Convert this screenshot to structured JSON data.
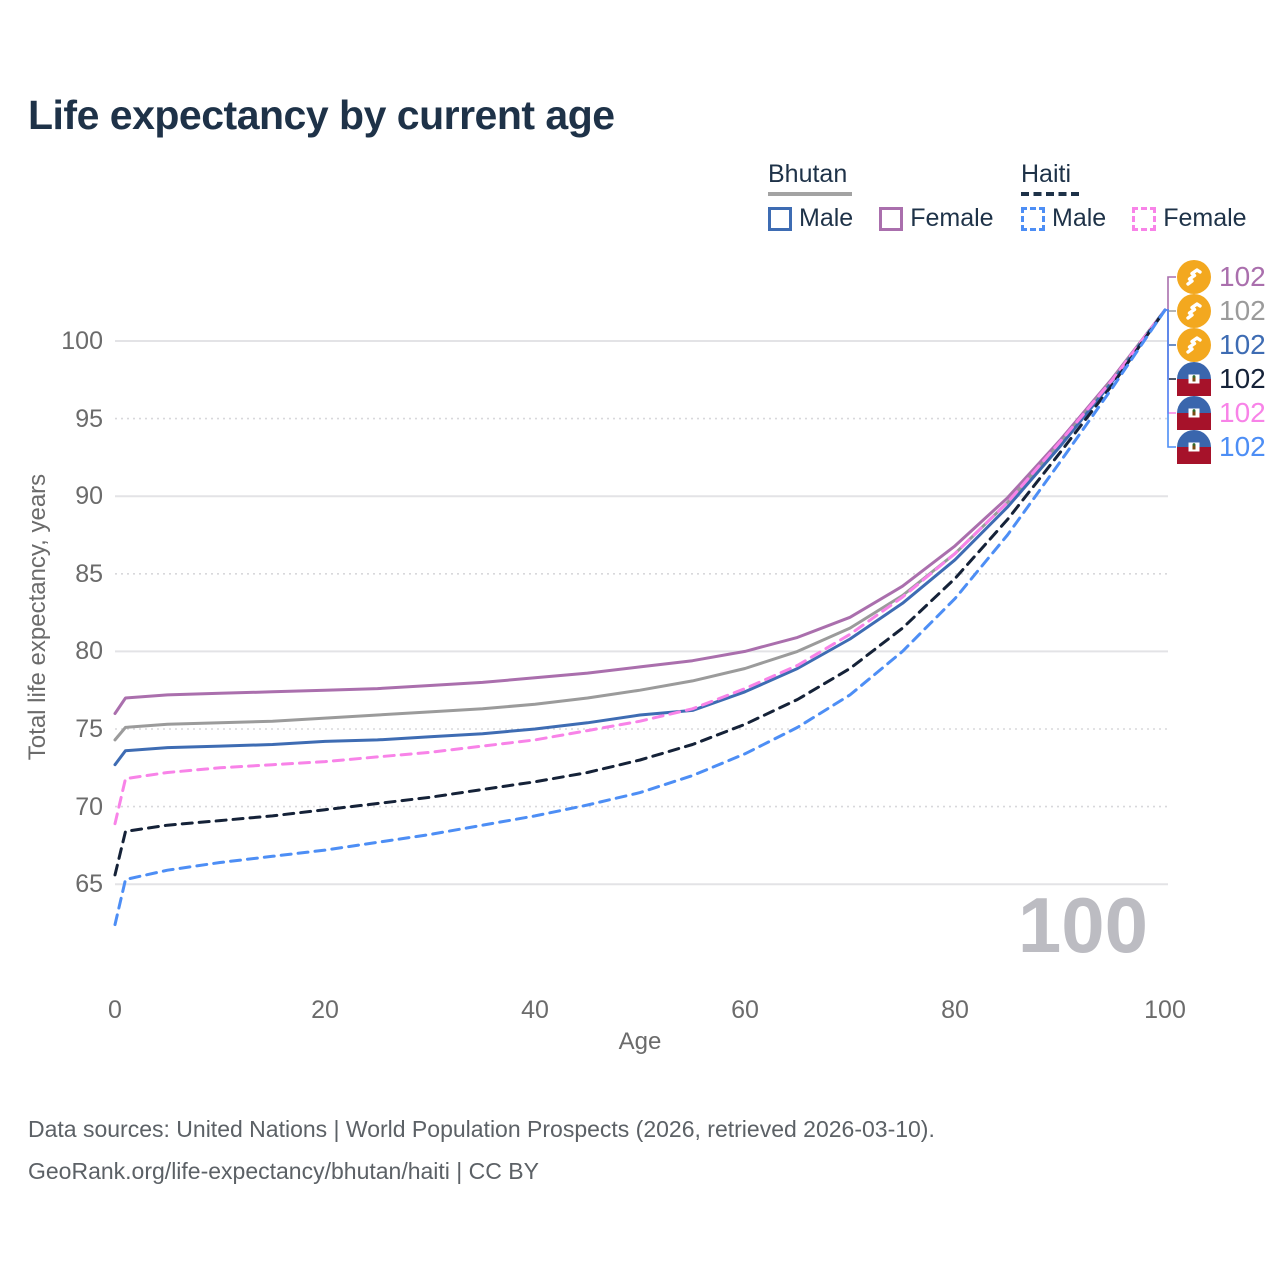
{
  "title": "Life expectancy by current age",
  "watermark": "100",
  "footer": {
    "line1": "Data sources: United Nations | World Population Prospects (2026, retrieved 2026-03-10).",
    "line2": "GeoRank.org/life-expectancy/bhutan/haiti | CC BY"
  },
  "legend": {
    "groups": [
      {
        "name": "Bhutan",
        "underline_style": "solid",
        "underline_color": "#a3a3a3",
        "items": [
          {
            "label": "Male",
            "color": "#3e6cb3",
            "dashed": false
          },
          {
            "label": "Female",
            "color": "#aa6fad",
            "dashed": false
          }
        ]
      },
      {
        "name": "Haiti",
        "underline_style": "dashed",
        "underline_color": "#1e3248",
        "items": [
          {
            "label": "Male",
            "color": "#4d8ef5",
            "dashed": true
          },
          {
            "label": "Female",
            "color": "#f883e8",
            "dashed": true
          }
        ]
      }
    ]
  },
  "end_labels": [
    {
      "flag": "bhutan",
      "value": "102",
      "color": "#aa6fad"
    },
    {
      "flag": "bhutan",
      "value": "102",
      "color": "#9b9b9b"
    },
    {
      "flag": "bhutan",
      "value": "102",
      "color": "#3e6cb3"
    },
    {
      "flag": "haiti",
      "value": "102",
      "color": "#152238"
    },
    {
      "flag": "haiti",
      "value": "102",
      "color": "#f883e8"
    },
    {
      "flag": "haiti",
      "value": "102",
      "color": "#4d8ef5"
    }
  ],
  "chart_data": {
    "type": "line",
    "title": "Life expectancy by current age",
    "xlabel": "Age",
    "ylabel": "Total life expectancy, years",
    "xlim": [
      0,
      100
    ],
    "ylim": [
      62,
      103
    ],
    "x_ticks": [
      0,
      20,
      40,
      60,
      80,
      100
    ],
    "y_ticks": [
      65,
      70,
      75,
      80,
      85,
      90,
      95,
      100
    ],
    "solid_gridlines": [
      100,
      90,
      80,
      65
    ],
    "legend_position": "top-right",
    "grid": true,
    "x": [
      0,
      1,
      5,
      10,
      15,
      20,
      25,
      30,
      35,
      40,
      45,
      50,
      55,
      60,
      65,
      70,
      75,
      80,
      85,
      90,
      95,
      100
    ],
    "series": [
      {
        "name": "Bhutan Female",
        "color": "#aa6fad",
        "dashed": false,
        "values": [
          76.0,
          77.0,
          77.2,
          77.3,
          77.4,
          77.5,
          77.6,
          77.8,
          78.0,
          78.3,
          78.6,
          79.0,
          79.4,
          80.0,
          80.9,
          82.2,
          84.2,
          86.8,
          89.9,
          93.6,
          97.6,
          102
        ]
      },
      {
        "name": "Bhutan Both sexes",
        "color": "#9b9b9b",
        "dashed": false,
        "values": [
          74.3,
          75.1,
          75.3,
          75.4,
          75.5,
          75.7,
          75.9,
          76.1,
          76.3,
          76.6,
          77.0,
          77.5,
          78.1,
          78.9,
          80.0,
          81.5,
          83.6,
          86.3,
          89.6,
          93.4,
          97.5,
          102
        ]
      },
      {
        "name": "Bhutan Male",
        "color": "#3e6cb3",
        "dashed": false,
        "values": [
          72.7,
          73.6,
          73.8,
          73.9,
          74.0,
          74.2,
          74.3,
          74.5,
          74.7,
          75.0,
          75.4,
          75.9,
          76.2,
          77.4,
          78.9,
          80.8,
          83.1,
          85.9,
          89.3,
          93.2,
          97.4,
          102
        ]
      },
      {
        "name": "Haiti Female",
        "color": "#f883e8",
        "dashed": true,
        "values": [
          68.9,
          71.8,
          72.2,
          72.5,
          72.7,
          72.9,
          73.2,
          73.5,
          73.9,
          74.3,
          74.9,
          75.5,
          76.3,
          77.6,
          79.1,
          81.1,
          83.5,
          86.3,
          89.6,
          93.5,
          97.5,
          102
        ]
      },
      {
        "name": "Haiti Both sexes",
        "color": "#152238",
        "dashed": true,
        "values": [
          65.6,
          68.4,
          68.8,
          69.1,
          69.4,
          69.8,
          70.2,
          70.6,
          71.1,
          71.6,
          72.2,
          73.0,
          74.0,
          75.3,
          76.9,
          78.9,
          81.5,
          84.7,
          88.5,
          92.8,
          97.2,
          102
        ]
      },
      {
        "name": "Haiti Male",
        "color": "#4d8ef5",
        "dashed": true,
        "values": [
          62.4,
          65.3,
          65.9,
          66.4,
          66.8,
          67.2,
          67.7,
          68.2,
          68.8,
          69.4,
          70.1,
          70.9,
          72.0,
          73.4,
          75.1,
          77.2,
          80.0,
          83.4,
          87.5,
          92.2,
          97.0,
          102
        ]
      }
    ]
  }
}
